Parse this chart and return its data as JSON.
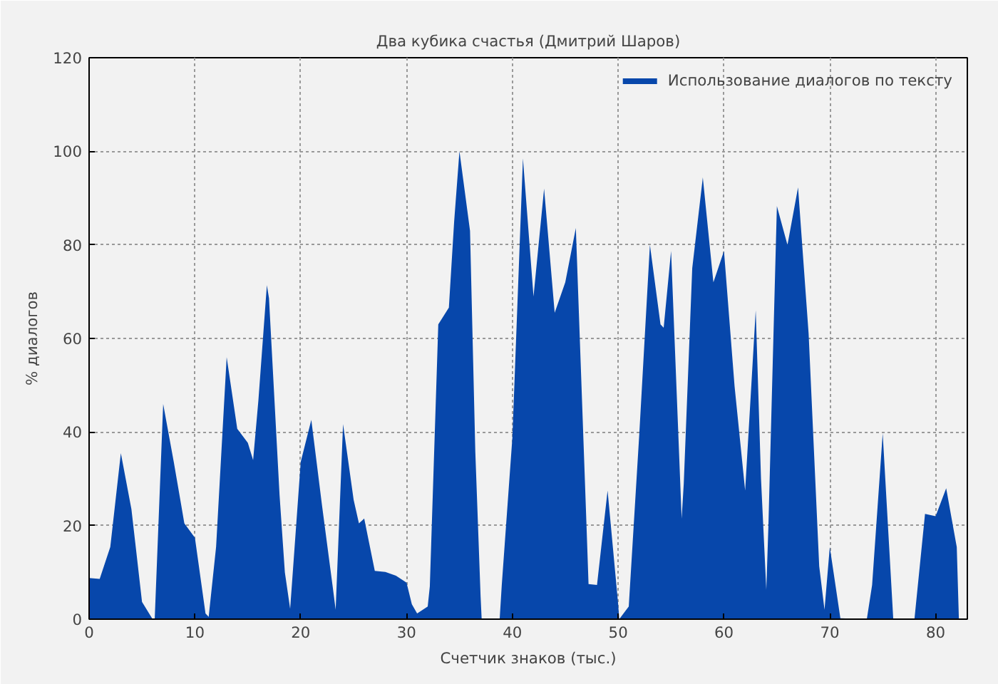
{
  "chart_data": {
    "type": "area",
    "title": "Два кубика счастья (Дмитрий Шаров)",
    "xlabel": "Счетчик знаков (тыс.)",
    "ylabel": "% диалогов",
    "x": [
      0,
      1,
      2,
      3,
      4,
      5,
      6,
      6.2,
      7,
      8,
      9,
      10,
      11,
      11.3,
      12,
      13,
      14,
      15,
      15.5,
      16,
      16.8,
      17,
      18,
      18.5,
      19,
      20,
      21,
      22,
      23,
      23.3,
      24,
      25,
      25.5,
      26,
      27,
      28,
      29,
      30,
      30.5,
      31,
      32,
      32.2,
      33,
      34,
      34.5,
      35,
      36,
      36.5,
      37,
      37.1,
      38.8,
      39,
      40,
      41,
      42,
      43,
      44,
      45,
      46,
      47,
      47.2,
      48,
      49,
      50,
      50.1,
      51,
      52,
      53,
      54,
      54.3,
      55,
      56,
      56.2,
      57,
      58,
      59,
      60,
      61,
      62,
      63,
      63.5,
      64,
      64.2,
      65,
      66,
      67,
      68,
      69,
      69.5,
      70,
      71,
      73.5,
      74,
      75,
      76,
      78,
      79,
      80,
      81,
      82,
      82.2
    ],
    "series": [
      {
        "name": "Использование диалогов по тексту",
        "color": "#0747ab",
        "values": [
          8.8,
          8.6,
          15.4,
          35.5,
          23.5,
          3.7,
          0,
          0,
          46,
          33.6,
          20.5,
          17.4,
          1.2,
          0.5,
          15.4,
          56,
          40.7,
          37.7,
          34,
          46.8,
          71.4,
          68.6,
          26.5,
          10,
          2.2,
          33.6,
          42.6,
          24.5,
          7.3,
          2,
          41.7,
          25.5,
          20.5,
          21.5,
          10.3,
          10.1,
          9.3,
          7.8,
          3.2,
          1.2,
          2.7,
          7,
          63,
          66.6,
          85,
          100,
          83,
          35.7,
          4.8,
          0,
          0,
          7.3,
          38.7,
          98.5,
          69,
          92,
          65.5,
          72,
          83.6,
          20.5,
          7.5,
          7.3,
          27.5,
          3.2,
          0,
          2.7,
          39.7,
          80,
          63,
          62.3,
          78.7,
          21.5,
          29,
          75,
          94.4,
          72,
          78.7,
          49.8,
          27.5,
          66,
          30,
          6.3,
          20,
          88.3,
          80,
          92.3,
          61,
          11.3,
          2,
          15.4,
          0.2,
          0,
          7.3,
          39.7,
          0,
          0,
          22.5,
          22,
          28,
          15.4,
          0
        ]
      }
    ],
    "xlim": [
      0,
      83
    ],
    "ylim": [
      0,
      120
    ],
    "xticks": [
      0,
      10,
      20,
      30,
      40,
      50,
      60,
      70,
      80
    ],
    "yticks": [
      0,
      20,
      40,
      60,
      80,
      100,
      120
    ],
    "grid": true,
    "legend": "top right"
  }
}
